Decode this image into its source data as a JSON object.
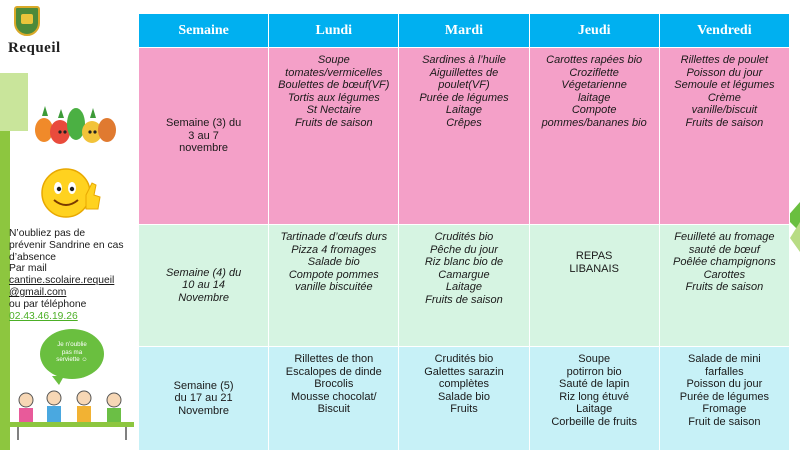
{
  "logo": {
    "text": "Requeil",
    "crest_icon": "town-crest-icon"
  },
  "notice": {
    "line1": "N’oubliez pas de",
    "line2": "prévenir Sandrine en cas",
    "line3": "d’absence",
    "line4": "Par mail",
    "email_line1": "cantine.scolaire.requeil",
    "email_line2": "@gmail.com",
    "line5": "ou par téléphone",
    "phone": "02.43.46.19.26"
  },
  "bubble": {
    "line1": "Je n’oublie",
    "line2": "pas ma",
    "line3": "serviette ☺"
  },
  "table": {
    "headers": [
      "Semaine",
      "Lundi",
      "Mardi",
      "Jeudi",
      "Vendredi"
    ],
    "rows": [
      {
        "week": [
          "Semaine (3) du",
          "3 au 7",
          "novembre"
        ],
        "days": [
          [
            "Soupe",
            "tomates/vermicelles",
            "Boulettes de bœuf(VF)",
            "Tortis aux légumes",
            "St Nectaire",
            "Fruits de saison"
          ],
          [
            "Sardines à l’huile",
            "Aiguillettes de",
            "poulet(VF)",
            "Purée de légumes",
            "Laitage",
            "Crêpes"
          ],
          [
            "Carottes rapées bio",
            "Croziflette",
            "Végetarienne",
            "laitage",
            "Compote",
            "pommes/bananes bio"
          ],
          [
            "Rillettes de poulet",
            "Poisson du jour",
            "Semoule et légumes",
            "Crème",
            "vanille/biscuit",
            "Fruits de saison"
          ]
        ]
      },
      {
        "week": [
          "Semaine (4) du",
          "10 au 14",
          "Novembre"
        ],
        "days": [
          [
            "Tartinade d’œufs durs",
            "Pizza 4 fromages",
            "Salade bio",
            "Compote pommes",
            "vanille biscuitée"
          ],
          [
            "Crudités bio",
            "Pêche du jour",
            "Riz blanc bio de",
            "Camargue",
            "Laitage",
            "Fruits de saison"
          ],
          [
            "REPAS",
            "LIBANAIS"
          ],
          [
            "Feuilleté au fromage",
            "sauté de bœuf",
            "Poêlée champignons",
            "Carottes",
            "Fruits de saison"
          ]
        ]
      },
      {
        "week": [
          "Semaine (5)",
          "du 17 au 21",
          "Novembre"
        ],
        "days": [
          [
            "Rillettes de thon",
            "Escalopes de dinde",
            "Brocolis",
            "Mousse chocolat/",
            "Biscuit"
          ],
          [
            "Crudités bio",
            "Galettes sarazin",
            "complètes",
            "Salade bio",
            "Fruits"
          ],
          [
            "Soupe",
            "potirron bio",
            "Sauté de lapin",
            "Riz long étuvé",
            "Laitage",
            "Corbeille de fruits"
          ],
          [
            "Salade de mini",
            "farfalles",
            "Poisson du jour",
            "Purée de légumes",
            "Fromage",
            "Fruit de saison"
          ]
        ]
      }
    ]
  },
  "colors": {
    "header": "#00b0f0",
    "week3": "#f4a0c8",
    "week4": "#d6f4e2",
    "week5": "#c7f1f7",
    "accent_green": "#8dc63f"
  }
}
